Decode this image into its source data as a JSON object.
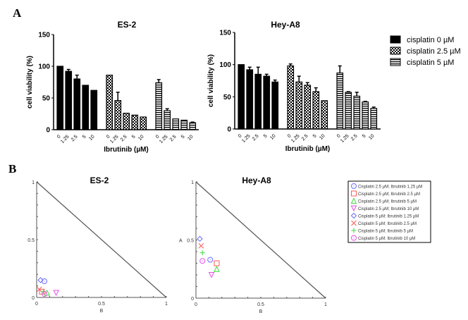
{
  "panels": {
    "a": "A",
    "b": "B"
  },
  "chart_data": [
    {
      "type": "bar",
      "title": "ES-2",
      "xlabel": "Ibrutinib (µM)",
      "ylabel": "cell viability (%)",
      "ylim": [
        0,
        150
      ],
      "yticks": [
        0,
        50,
        100,
        150
      ],
      "categories": [
        "0",
        "1.25",
        "2.5",
        "5",
        "10"
      ],
      "series": [
        {
          "name": "cisplatin 0 µM",
          "values": [
            100,
            92,
            80,
            70,
            62
          ],
          "errors": [
            0,
            3,
            6,
            0,
            0
          ]
        },
        {
          "name": "cisplatin 2.5 µM",
          "values": [
            86,
            46,
            26,
            23,
            20
          ],
          "errors": [
            0,
            13,
            0,
            0,
            0
          ]
        },
        {
          "name": "cisplatin 5 µM",
          "values": [
            74,
            30,
            17,
            15,
            11
          ],
          "errors": [
            5,
            3,
            0,
            0,
            1
          ]
        }
      ]
    },
    {
      "type": "bar",
      "title": "Hey-A8",
      "xlabel": "Ibrutinib (µM)",
      "ylabel": "cell viability (%)",
      "ylim": [
        0,
        150
      ],
      "yticks": [
        0,
        50,
        100,
        150
      ],
      "categories": [
        "0",
        "1.25",
        "2.5",
        "5",
        "10"
      ],
      "series": [
        {
          "name": "cisplatin 0 µM",
          "values": [
            100,
            92,
            85,
            82,
            73
          ],
          "errors": [
            0,
            4,
            11,
            3,
            3
          ]
        },
        {
          "name": "cisplatin 2.5 µM",
          "values": [
            98,
            73,
            68,
            58,
            44
          ],
          "errors": [
            3,
            9,
            4,
            6,
            0
          ]
        },
        {
          "name": "cisplatin 5 µM",
          "values": [
            87,
            57,
            51,
            42,
            32
          ],
          "errors": [
            11,
            1,
            6,
            1,
            2
          ]
        }
      ]
    },
    {
      "type": "scatter",
      "title": "ES-2",
      "xlabel": "B",
      "ylabel": "",
      "xlim": [
        0,
        1
      ],
      "ylim": [
        0,
        1
      ],
      "ticks": [
        "0",
        "0.5",
        "1"
      ],
      "points": [
        [
          0.06,
          0.14
        ],
        [
          0.04,
          0.05
        ],
        [
          0.08,
          0.04
        ],
        [
          0.15,
          0.04
        ],
        [
          0.03,
          0.15
        ],
        [
          0.02,
          0.07
        ],
        [
          0.05,
          0.05
        ],
        [
          0.06,
          0.03
        ]
      ]
    },
    {
      "type": "scatter",
      "title": "Hey-A8",
      "xlabel": "B",
      "ylabel": "A",
      "xlim": [
        0,
        1
      ],
      "ylim": [
        0,
        1
      ],
      "ticks": [
        "0",
        "0.5",
        "1"
      ],
      "points": [
        [
          0.11,
          0.33
        ],
        [
          0.16,
          0.3
        ],
        [
          0.16,
          0.25
        ],
        [
          0.12,
          0.2
        ],
        [
          0.03,
          0.51
        ],
        [
          0.04,
          0.45
        ],
        [
          0.05,
          0.39
        ],
        [
          0.05,
          0.32
        ]
      ]
    }
  ],
  "scatter_legend": [
    {
      "label": "Cisplatin 2.5 µM; Ibrutinib 1.25 µM",
      "marker": "circle-dot",
      "color": "#6b6bff"
    },
    {
      "label": "Cisplatin 2.5 µM; Ibrutinib 2.5 µM",
      "marker": "square",
      "color": "#ff5a5a"
    },
    {
      "label": "Cisplatin 2.5 µM; Ibrutinib 5 µM",
      "marker": "triangle",
      "color": "#3ddc3d"
    },
    {
      "label": "Cisplatin 2.5 µM; Ibrutinib 10 µM",
      "marker": "triangle-down",
      "color": "#e84ce8"
    },
    {
      "label": "Cisplatin 5 µM; Ibrutinib 1.25 µM",
      "marker": "diamond",
      "color": "#6b6bff"
    },
    {
      "label": "Cisplatin 5 µM; Ibrutinib 2.5 µM",
      "marker": "x",
      "color": "#ff5a5a"
    },
    {
      "label": "Cisplatin 5 µM; Ibrutinib 5 µM",
      "marker": "plus",
      "color": "#3ddc3d"
    },
    {
      "label": "Cisplatin 5 µM; Ibrutinib 10 µM",
      "marker": "circle-dot",
      "color": "#e84ce8"
    }
  ]
}
